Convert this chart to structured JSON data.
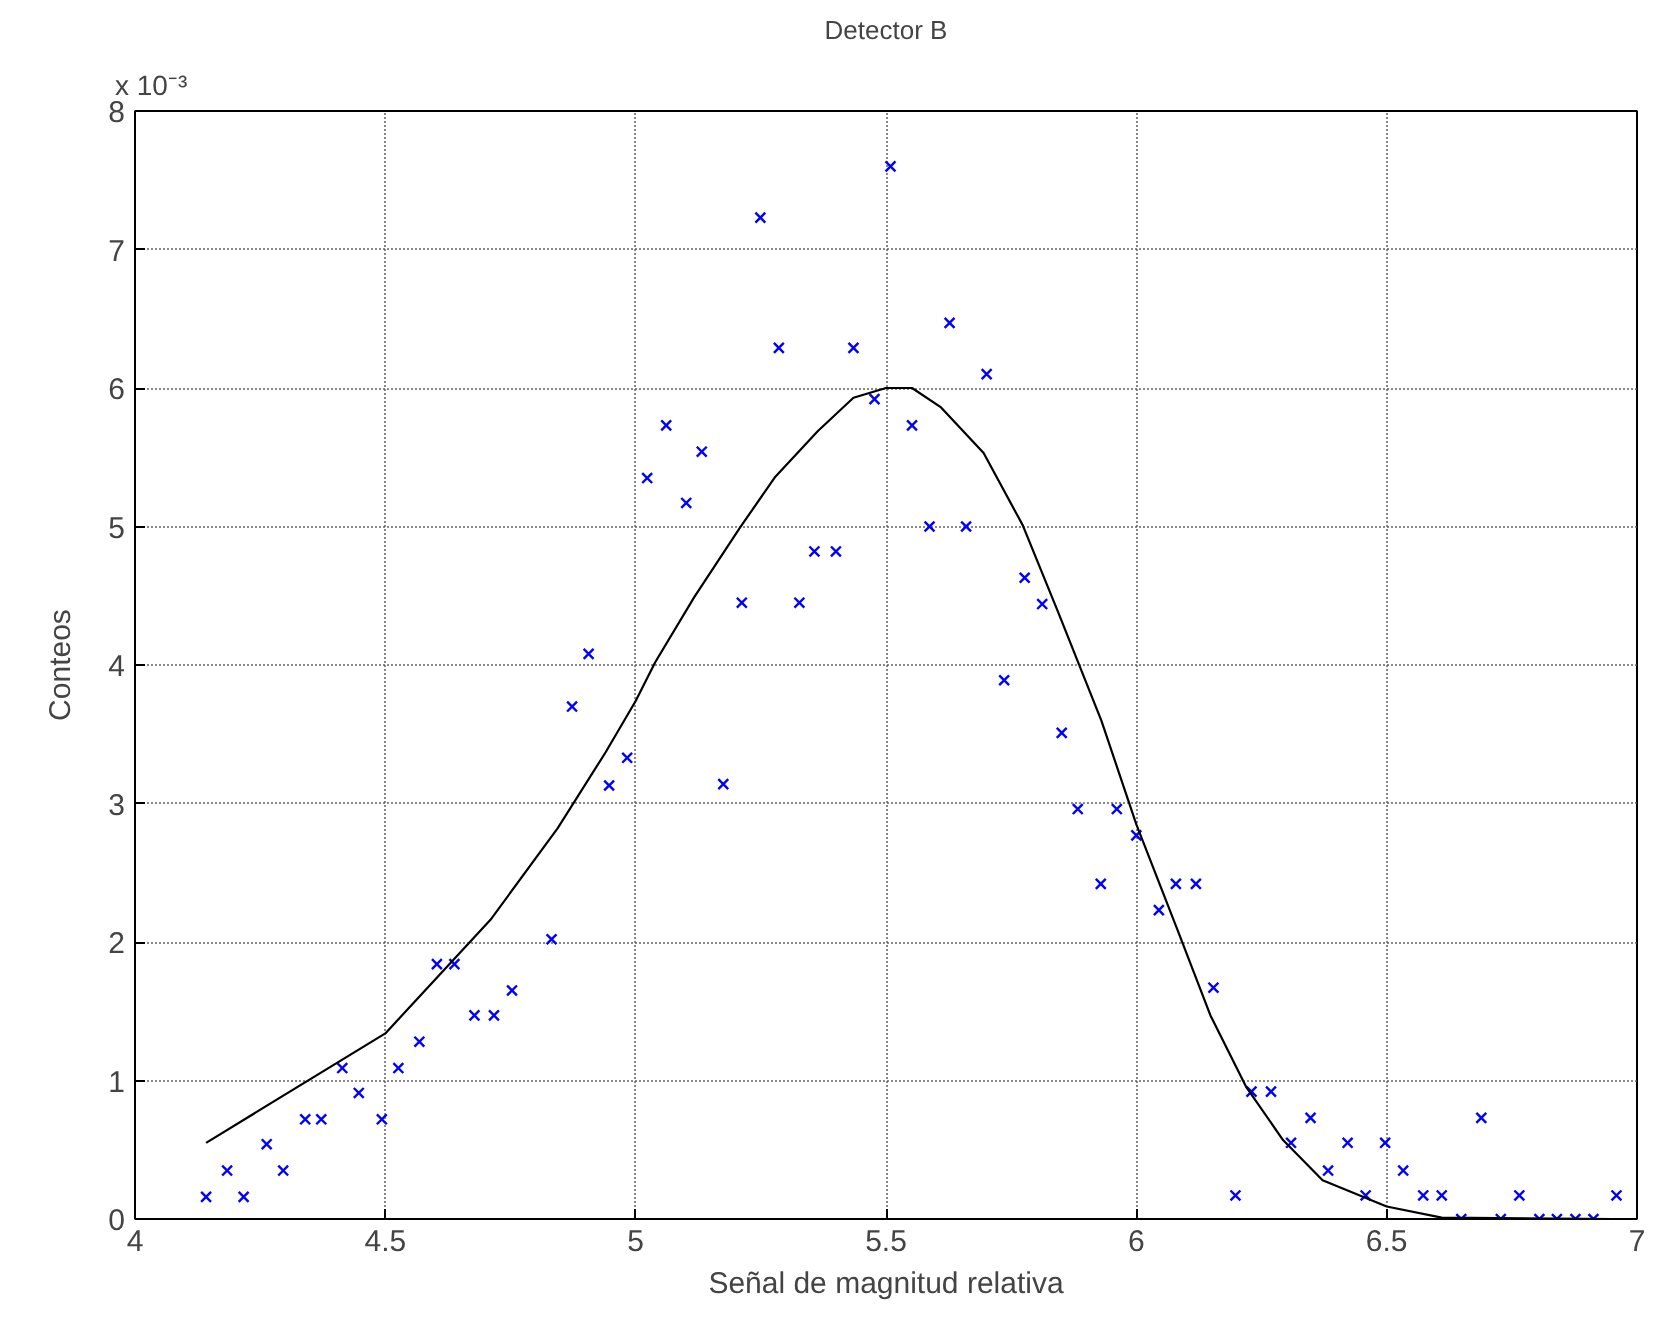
{
  "chart_data": {
    "type": "scatter",
    "title": "Detector B",
    "xlabel": "Señal de magnitud relativa",
    "ylabel": "Conteos",
    "annotations": [
      "x 10⁻³"
    ],
    "xlim": [
      4,
      7
    ],
    "xticks": [
      4,
      4.5,
      5,
      5.5,
      6,
      6.5,
      7
    ],
    "ylim": [
      0,
      8
    ],
    "yticks": [
      0,
      1,
      2,
      3,
      4,
      5,
      6,
      7,
      8
    ],
    "grid": true,
    "series": [
      {
        "marker": "cross",
        "color": "#0000ff",
        "x": [
          4.142,
          4.184,
          4.217,
          4.263,
          4.296,
          4.34,
          4.372,
          4.414,
          4.447,
          4.493,
          4.526,
          4.568,
          4.603,
          4.638,
          4.678,
          4.717,
          4.753,
          4.832,
          4.873,
          4.906,
          4.947,
          4.983,
          5.023,
          5.061,
          5.101,
          5.132,
          5.175,
          5.212,
          5.249,
          5.286,
          5.327,
          5.357,
          5.4,
          5.435,
          5.477,
          5.509,
          5.552,
          5.587,
          5.627,
          5.66,
          5.701,
          5.736,
          5.777,
          5.812,
          5.851,
          5.883,
          5.929,
          5.961,
          6.0,
          6.045,
          6.079,
          6.119,
          6.154,
          6.198,
          6.23,
          6.269,
          6.309,
          6.348,
          6.383,
          6.422,
          6.458,
          6.497,
          6.533,
          6.573,
          6.61,
          6.649,
          6.689,
          6.728,
          6.765,
          6.805,
          6.84,
          6.877,
          6.913,
          6.959
        ],
        "values": [
          0.16,
          0.35,
          0.16,
          0.54,
          0.35,
          0.72,
          0.72,
          1.09,
          0.91,
          0.72,
          1.09,
          1.28,
          1.84,
          1.84,
          1.47,
          1.47,
          1.65,
          2.02,
          3.7,
          4.08,
          3.13,
          3.33,
          5.35,
          5.73,
          5.17,
          5.54,
          3.14,
          4.45,
          7.23,
          6.29,
          4.45,
          4.82,
          4.82,
          6.29,
          5.92,
          7.6,
          5.73,
          5.0,
          6.47,
          5.0,
          6.1,
          3.89,
          4.63,
          4.44,
          3.51,
          2.96,
          2.42,
          2.96,
          2.77,
          2.23,
          2.42,
          2.42,
          1.67,
          0.17,
          0.92,
          0.92,
          0.55,
          0.73,
          0.35,
          0.55,
          0.17,
          0.55,
          0.35,
          0.17,
          0.17,
          0,
          0.73,
          0,
          0.17,
          0,
          0,
          0,
          0,
          0.17
        ]
      },
      {
        "type": "line",
        "line_style": "solid",
        "color": "#000000",
        "x": [
          4.142,
          4.5,
          4.71,
          4.844,
          4.94,
          5.0,
          5.039,
          5.117,
          5.208,
          5.279,
          5.364,
          5.435,
          5.5,
          5.552,
          5.61,
          5.695,
          5.773,
          5.844,
          5.93,
          6.0,
          6.082,
          6.148,
          6.22,
          6.293,
          6.372,
          6.5,
          6.61,
          6.953
        ],
        "values": [
          0.55,
          1.34,
          2.16,
          2.82,
          3.37,
          3.74,
          4.02,
          4.49,
          4.99,
          5.36,
          5.69,
          5.93,
          6.0,
          6.0,
          5.86,
          5.53,
          5.01,
          4.38,
          3.6,
          2.85,
          2.09,
          1.47,
          0.95,
          0.57,
          0.28,
          0.09,
          0.01,
          0.0
        ]
      }
    ]
  }
}
